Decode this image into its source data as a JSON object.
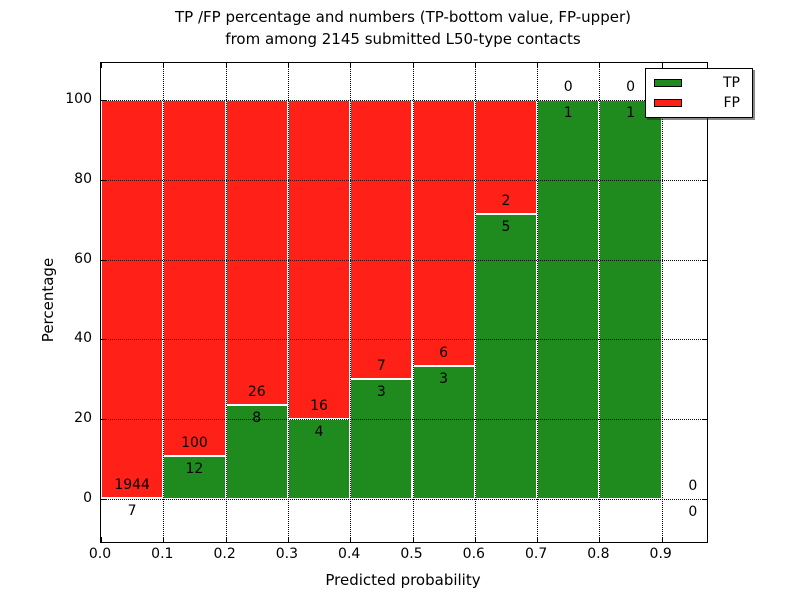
{
  "figure": {
    "title_line1": "TP /FP percentage and numbers (TP-bottom value, FP-upper)",
    "title_line2": "from among 2145 submitted L50-type contacts",
    "xlabel": "Predicted probability",
    "ylabel": "Percentage"
  },
  "legend": {
    "items": [
      {
        "label": "TP",
        "color": "#1f8b1f"
      },
      {
        "label": "FP",
        "color": "#ff2117"
      }
    ]
  },
  "chart_data": {
    "type": "bar",
    "stacked": true,
    "title": "TP /FP percentage and numbers (TP-bottom value, FP-upper) from among 2145 submitted L50-type contacts",
    "xlabel": "Predicted probability",
    "ylabel": "Percentage",
    "total_contacts": 2145,
    "bin_width": 0.1,
    "categories": [
      "0.0-0.1",
      "0.1-0.2",
      "0.2-0.3",
      "0.3-0.4",
      "0.4-0.5",
      "0.5-0.6",
      "0.6-0.7",
      "0.7-0.8",
      "0.8-0.9",
      "0.9-1.0"
    ],
    "series": [
      {
        "name": "TP",
        "color": "#1f8b1f",
        "counts": [
          7,
          12,
          8,
          4,
          3,
          3,
          5,
          1,
          1,
          0
        ]
      },
      {
        "name": "FP",
        "color": "#ff2117",
        "counts": [
          1944,
          100,
          26,
          16,
          7,
          6,
          2,
          0,
          0,
          0
        ]
      }
    ],
    "tp_percent": [
      0.36,
      10.71,
      23.53,
      20.0,
      30.0,
      33.33,
      71.43,
      100.0,
      100.0,
      null
    ],
    "xticks": [
      "0.0",
      "0.1",
      "0.2",
      "0.3",
      "0.4",
      "0.5",
      "0.6",
      "0.7",
      "0.8",
      "0.9"
    ],
    "yticks": [
      "0",
      "20",
      "40",
      "60",
      "80",
      "100"
    ],
    "xlim": [
      0.0,
      0.975
    ],
    "ylim": [
      -10,
      110
    ],
    "grid": "dotted",
    "legend_position": "upper right"
  }
}
